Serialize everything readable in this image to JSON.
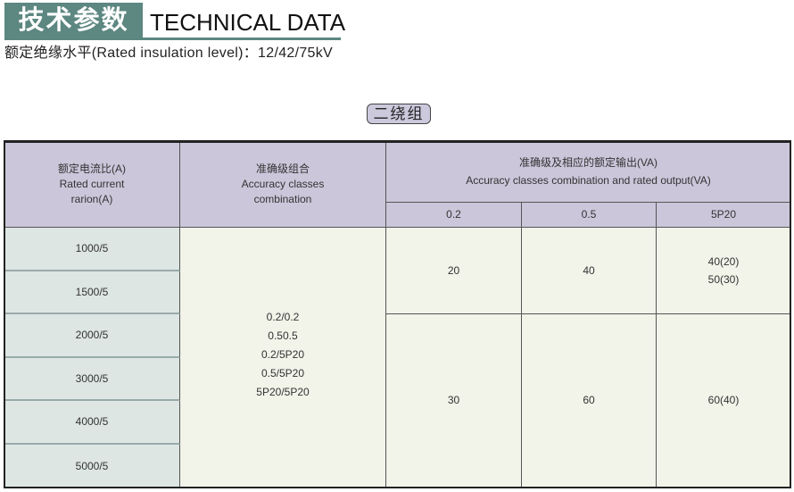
{
  "title": {
    "cn": "技术参数",
    "en": "TECHNICAL DATA"
  },
  "subtitle": "额定绝缘水平(Rated insulation level)：12/42/75kV",
  "section_badge": "二绕组",
  "colors": {
    "title_bg": "#5d8781",
    "header_bg": "#cbc6da",
    "first_col_bg": "#dde6e3",
    "cell_bg": "#f2f3e9"
  },
  "table": {
    "headers": {
      "ratio": "额定电流比(A)\nRated current\nrarion(A)",
      "combination": "准确级组合\nAccuracy classes\ncombination",
      "output": "准确级及相应的额定输出(VA)\nAccuracy classes combination and rated output(VA)",
      "sub": [
        "0.2",
        "0.5",
        "5P20"
      ]
    },
    "ratios": [
      "1000/5",
      "1500/5",
      "2000/5",
      "3000/5",
      "4000/5",
      "5000/5"
    ],
    "combinations": "0.2/0.2\n0.50.5\n0.2/5P20\n0.5/5P20\n5P20/5P20",
    "groups": [
      {
        "values": [
          "20",
          "40",
          "40(20)\n50(30)"
        ]
      },
      {
        "values": [
          "30",
          "60",
          "60(40)"
        ]
      }
    ]
  }
}
